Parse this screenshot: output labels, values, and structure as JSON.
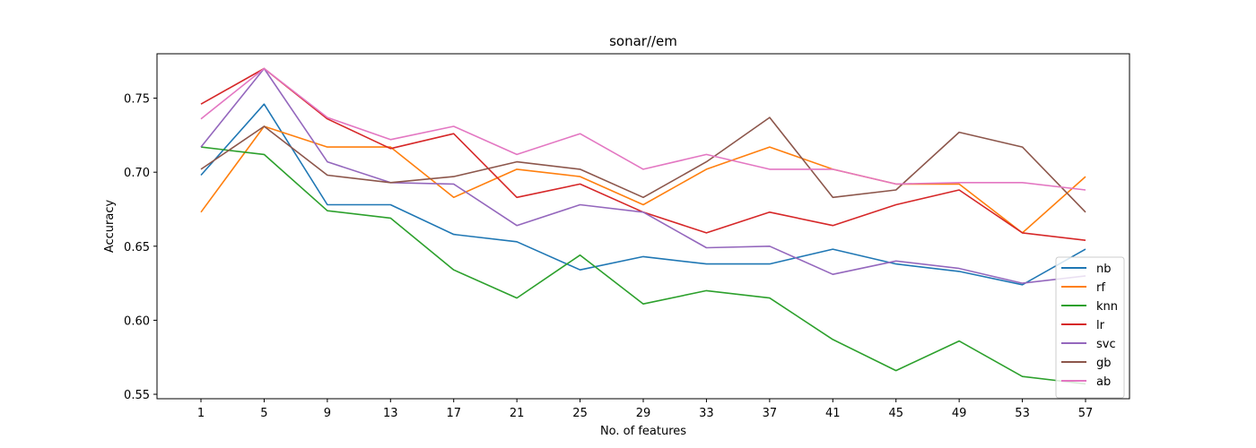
{
  "chart_data": {
    "type": "line",
    "title": "sonar//em",
    "xlabel": "No. of features",
    "ylabel": "Accuracy",
    "x": [
      1,
      5,
      9,
      13,
      17,
      21,
      25,
      29,
      33,
      37,
      41,
      45,
      49,
      53,
      57
    ],
    "xticks": [
      "1",
      "5",
      "9",
      "13",
      "17",
      "21",
      "25",
      "29",
      "33",
      "37",
      "41",
      "45",
      "49",
      "53",
      "57"
    ],
    "yticks": [
      0.55,
      0.6,
      0.65,
      0.7,
      0.75
    ],
    "ytick_labels": [
      "0.55",
      "0.60",
      "0.65",
      "0.70",
      "0.75"
    ],
    "ylim": [
      0.547,
      0.78
    ],
    "grid": false,
    "legend_position": "lower-right",
    "series": [
      {
        "name": "nb",
        "color": "#1f77b4",
        "values": [
          0.698,
          0.746,
          0.678,
          0.678,
          0.658,
          0.653,
          0.634,
          0.643,
          0.638,
          0.638,
          0.648,
          0.638,
          0.633,
          0.624,
          0.648
        ]
      },
      {
        "name": "rf",
        "color": "#ff7f0e",
        "values": [
          0.673,
          0.731,
          0.717,
          0.717,
          0.683,
          0.702,
          0.697,
          0.678,
          0.702,
          0.717,
          0.702,
          0.692,
          0.692,
          0.659,
          0.697
        ]
      },
      {
        "name": "knn",
        "color": "#2ca02c",
        "values": [
          0.717,
          0.712,
          0.674,
          0.669,
          0.634,
          0.615,
          0.644,
          0.611,
          0.62,
          0.615,
          0.587,
          0.566,
          0.586,
          0.562,
          0.557
        ]
      },
      {
        "name": "lr",
        "color": "#d62728",
        "values": [
          0.746,
          0.77,
          0.736,
          0.716,
          0.726,
          0.683,
          0.692,
          0.673,
          0.659,
          0.673,
          0.664,
          0.678,
          0.688,
          0.659,
          0.654
        ]
      },
      {
        "name": "svc",
        "color": "#9467bd",
        "values": [
          0.717,
          0.77,
          0.707,
          0.693,
          0.692,
          0.664,
          0.678,
          0.673,
          0.649,
          0.65,
          0.631,
          0.64,
          0.635,
          0.625,
          0.63
        ]
      },
      {
        "name": "gb",
        "color": "#8c564b",
        "values": [
          0.702,
          0.731,
          0.698,
          0.693,
          0.697,
          0.707,
          0.702,
          0.683,
          0.707,
          0.737,
          0.683,
          0.688,
          0.727,
          0.717,
          0.673
        ]
      },
      {
        "name": "ab",
        "color": "#e377c2",
        "values": [
          0.736,
          0.77,
          0.737,
          0.722,
          0.731,
          0.712,
          0.726,
          0.702,
          0.712,
          0.702,
          0.702,
          0.692,
          0.693,
          0.693,
          0.688
        ]
      }
    ]
  }
}
